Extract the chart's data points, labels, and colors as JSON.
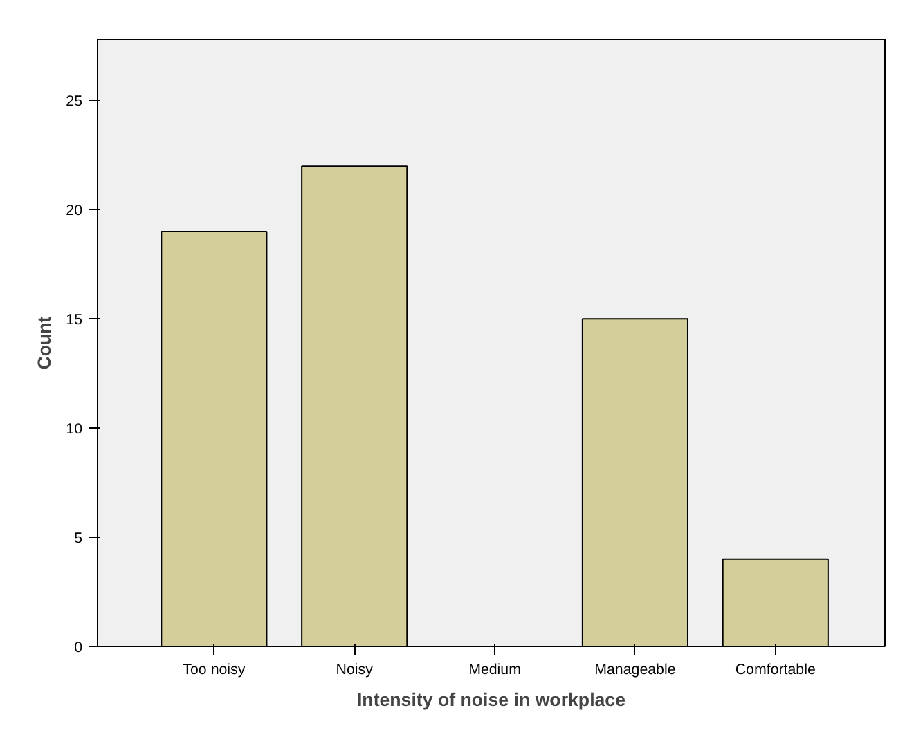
{
  "chart_data": {
    "type": "bar",
    "xlabel": "Intensity of noise in workplace",
    "ylabel": "Count",
    "categories": [
      "Too noisy",
      "Noisy",
      "Medium",
      "Manageable",
      "Comfortable"
    ],
    "values": [
      19,
      22,
      0,
      15,
      4
    ],
    "color": "#d3ce9a",
    "ylim": [
      0,
      27.8
    ],
    "yticks": [
      0,
      5,
      10,
      15,
      20,
      25
    ],
    "grid": false
  }
}
